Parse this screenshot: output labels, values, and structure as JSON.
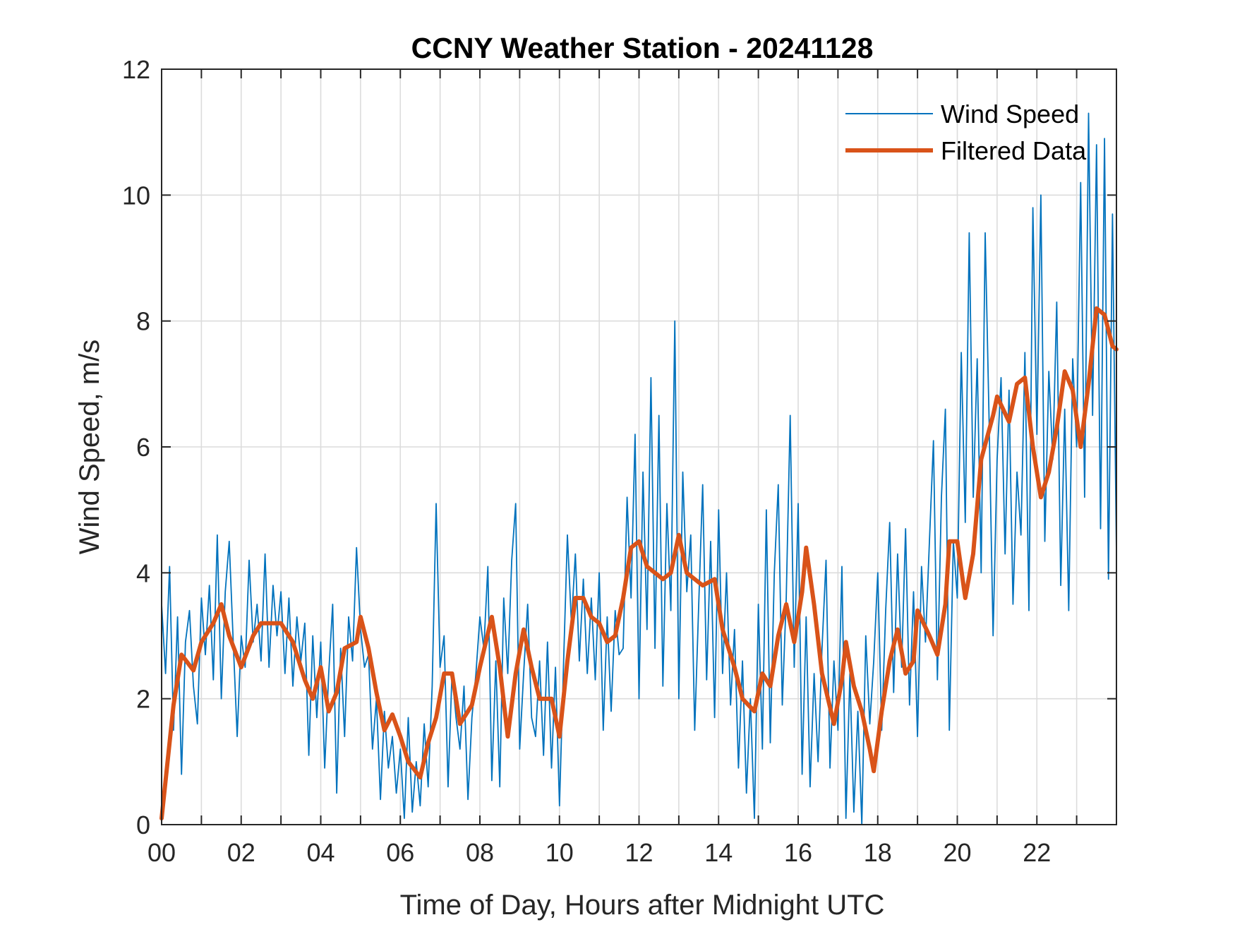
{
  "chart_data": {
    "type": "line",
    "title": "CCNY Weather Station - 20241128",
    "xlabel": "Time of Day, Hours after Midnight UTC",
    "ylabel": "Wind Speed, m/s",
    "xlim": [
      0,
      24
    ],
    "ylim": [
      0,
      12
    ],
    "grid": true,
    "legend_position": "top-right",
    "legend_box": false,
    "x_ticks": [
      0,
      2,
      4,
      6,
      8,
      10,
      12,
      14,
      16,
      18,
      20,
      22
    ],
    "x_tick_labels": [
      "00",
      "02",
      "04",
      "06",
      "08",
      "10",
      "12",
      "14",
      "16",
      "18",
      "20",
      "22"
    ],
    "x_minor_ticks_every": 1,
    "y_ticks": [
      0,
      2,
      4,
      6,
      8,
      10,
      12
    ],
    "y_tick_labels": [
      "0",
      "2",
      "4",
      "6",
      "8",
      "10",
      "12"
    ],
    "series": [
      {
        "name": "Wind Speed",
        "color": "#0072BD",
        "style": "thin",
        "x_start": 0,
        "x_step": 0.1,
        "values": [
          3.5,
          2.4,
          4.1,
          1.5,
          3.3,
          0.8,
          2.9,
          3.4,
          2.2,
          1.6,
          3.6,
          2.7,
          3.8,
          2.3,
          4.6,
          2.0,
          3.7,
          4.5,
          2.9,
          1.4,
          3.0,
          2.5,
          4.2,
          2.9,
          3.5,
          2.6,
          4.3,
          2.5,
          3.8,
          3.0,
          3.7,
          2.4,
          3.6,
          2.2,
          3.3,
          2.6,
          3.2,
          1.1,
          3.0,
          1.7,
          2.9,
          0.9,
          2.4,
          3.5,
          0.5,
          2.8,
          1.4,
          3.3,
          2.6,
          4.4,
          3.1,
          2.5,
          2.7,
          1.2,
          2.0,
          0.4,
          1.8,
          0.9,
          1.4,
          0.5,
          1.2,
          0.1,
          1.7,
          0.2,
          1.0,
          0.3,
          1.6,
          0.6,
          2.2,
          5.1,
          2.5,
          3.0,
          0.6,
          2.4,
          1.7,
          1.2,
          2.2,
          0.4,
          1.7,
          2.4,
          3.3,
          2.8,
          4.1,
          0.7,
          2.6,
          0.6,
          3.6,
          2.4,
          4.2,
          5.1,
          1.2,
          2.4,
          3.5,
          1.7,
          1.4,
          2.6,
          1.1,
          2.9,
          0.9,
          2.5,
          0.3,
          2.5,
          4.6,
          3.2,
          4.3,
          2.6,
          3.9,
          2.4,
          3.6,
          2.3,
          4.0,
          1.5,
          3.3,
          1.8,
          3.4,
          2.7,
          2.8,
          5.2,
          3.6,
          6.2,
          2.0,
          5.6,
          3.1,
          7.1,
          2.8,
          6.5,
          2.2,
          5.1,
          3.4,
          8.0,
          2.0,
          5.6,
          3.7,
          4.6,
          1.5,
          3.5,
          5.4,
          2.3,
          4.5,
          1.7,
          5.0,
          2.4,
          4.0,
          1.9,
          3.1,
          0.9,
          2.6,
          0.5,
          2.0,
          0.1,
          3.5,
          1.2,
          5.0,
          1.3,
          4.0,
          5.4,
          1.9,
          3.6,
          6.5,
          2.5,
          5.1,
          0.8,
          3.3,
          0.6,
          2.4,
          1.0,
          2.8,
          4.2,
          0.9,
          2.6,
          1.5,
          4.1,
          0.1,
          2.4,
          0.2,
          1.8,
          0.0,
          3.0,
          1.6,
          2.6,
          4.0,
          1.5,
          3.4,
          4.8,
          2.1,
          4.3,
          2.5,
          4.7,
          1.9,
          3.7,
          1.4,
          4.1,
          2.9,
          4.5,
          6.1,
          2.3,
          5.2,
          6.6,
          1.5,
          4.5,
          3.6,
          7.5,
          4.8,
          9.4,
          5.2,
          7.4,
          4.0,
          9.4,
          6.4,
          3.0,
          5.8,
          7.1,
          4.3,
          6.9,
          3.5,
          5.6,
          4.6,
          7.5,
          3.4,
          9.8,
          6.2,
          10.0,
          4.5,
          7.2,
          5.8,
          8.3,
          3.8,
          6.6,
          3.4,
          7.4,
          6.0,
          10.2,
          5.2,
          11.3,
          6.5,
          10.8,
          4.7,
          10.9,
          3.9,
          9.7,
          4.3,
          9.6,
          5.2,
          8.4,
          7.5
        ]
      },
      {
        "name": "Filtered Data",
        "color": "#D95319",
        "style": "thick",
        "x": [
          0.0,
          0.3,
          0.5,
          0.8,
          1.0,
          1.3,
          1.5,
          1.7,
          2.0,
          2.3,
          2.5,
          3.0,
          3.3,
          3.6,
          3.8,
          4.0,
          4.2,
          4.4,
          4.6,
          4.9,
          5.0,
          5.2,
          5.4,
          5.6,
          5.8,
          6.0,
          6.2,
          6.5,
          6.7,
          6.9,
          7.1,
          7.3,
          7.5,
          7.8,
          8.0,
          8.3,
          8.5,
          8.7,
          8.9,
          9.1,
          9.3,
          9.5,
          9.8,
          10.0,
          10.2,
          10.4,
          10.6,
          10.8,
          11.0,
          11.2,
          11.4,
          11.6,
          11.8,
          12.0,
          12.2,
          12.4,
          12.6,
          12.8,
          13.0,
          13.2,
          13.4,
          13.6,
          13.9,
          14.1,
          14.4,
          14.6,
          14.9,
          15.1,
          15.3,
          15.5,
          15.7,
          15.9,
          16.1,
          16.2,
          16.4,
          16.6,
          16.9,
          17.1,
          17.2,
          17.4,
          17.6,
          17.8,
          17.9,
          18.1,
          18.3,
          18.5,
          18.7,
          18.9,
          19.0,
          19.3,
          19.5,
          19.7,
          19.8,
          20.0,
          20.2,
          20.4,
          20.6,
          20.9,
          21.0,
          21.3,
          21.5,
          21.7,
          21.9,
          22.1,
          22.3,
          22.5,
          22.7,
          22.9,
          23.1,
          23.3,
          23.5,
          23.7,
          23.9,
          24.0
        ],
        "values": [
          0.1,
          1.9,
          2.7,
          2.45,
          2.9,
          3.2,
          3.5,
          3.0,
          2.5,
          3.0,
          3.2,
          3.2,
          2.9,
          2.3,
          2.0,
          2.5,
          1.8,
          2.1,
          2.8,
          2.9,
          3.3,
          2.8,
          2.1,
          1.5,
          1.75,
          1.4,
          1.0,
          0.75,
          1.3,
          1.7,
          2.4,
          2.4,
          1.6,
          1.9,
          2.5,
          3.3,
          2.5,
          1.4,
          2.4,
          3.1,
          2.5,
          2.0,
          2.0,
          1.4,
          2.6,
          3.6,
          3.6,
          3.3,
          3.2,
          2.9,
          3.0,
          3.6,
          4.4,
          4.5,
          4.1,
          4.0,
          3.9,
          4.0,
          4.6,
          4.0,
          3.9,
          3.8,
          3.9,
          3.1,
          2.5,
          2.0,
          1.8,
          2.4,
          2.2,
          3.0,
          3.5,
          2.9,
          3.7,
          4.4,
          3.5,
          2.4,
          1.6,
          2.3,
          2.9,
          2.2,
          1.8,
          1.2,
          0.85,
          1.8,
          2.6,
          3.1,
          2.4,
          2.6,
          3.4,
          3.0,
          2.7,
          3.5,
          4.5,
          4.5,
          3.6,
          4.3,
          5.8,
          6.5,
          6.8,
          6.4,
          7.0,
          7.1,
          6.0,
          5.2,
          5.6,
          6.3,
          7.2,
          6.9,
          6.0,
          7.0,
          8.2,
          8.1,
          7.6,
          7.55
        ]
      }
    ]
  }
}
